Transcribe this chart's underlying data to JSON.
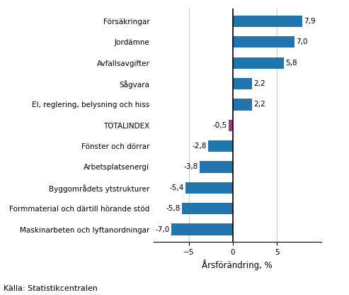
{
  "categories": [
    "Maskinarbeten och lyftanordningar",
    "Formmaterial och därtill hörande stöd",
    "Byggområdets ytstrukturer",
    "Arbetsplatsenergi",
    "Fönster och dörrar",
    "TOTALINDEX",
    "El, reglering, belysning och hiss",
    "Sågvara",
    "Avfallsavgifter",
    "Jordämne",
    "Försäkringar"
  ],
  "values": [
    -7.0,
    -5.8,
    -5.4,
    -3.8,
    -2.8,
    -0.5,
    2.2,
    2.2,
    5.8,
    7.0,
    7.9
  ],
  "bar_colors": [
    "#2176ae",
    "#2176ae",
    "#2176ae",
    "#2176ae",
    "#2176ae",
    "#9b3a7e",
    "#2176ae",
    "#2176ae",
    "#2176ae",
    "#2176ae",
    "#2176ae"
  ],
  "xlabel": "Årsförändring, %",
  "source": "Källa: Statistikcentralen",
  "xlim": [
    -9,
    10
  ],
  "xticks": [
    -5,
    0,
    5
  ],
  "background_color": "#ffffff",
  "grid_color": "#cccccc",
  "label_fontsize": 7.5,
  "value_fontsize": 7.5,
  "xlabel_fontsize": 8.5,
  "source_fontsize": 8.0
}
